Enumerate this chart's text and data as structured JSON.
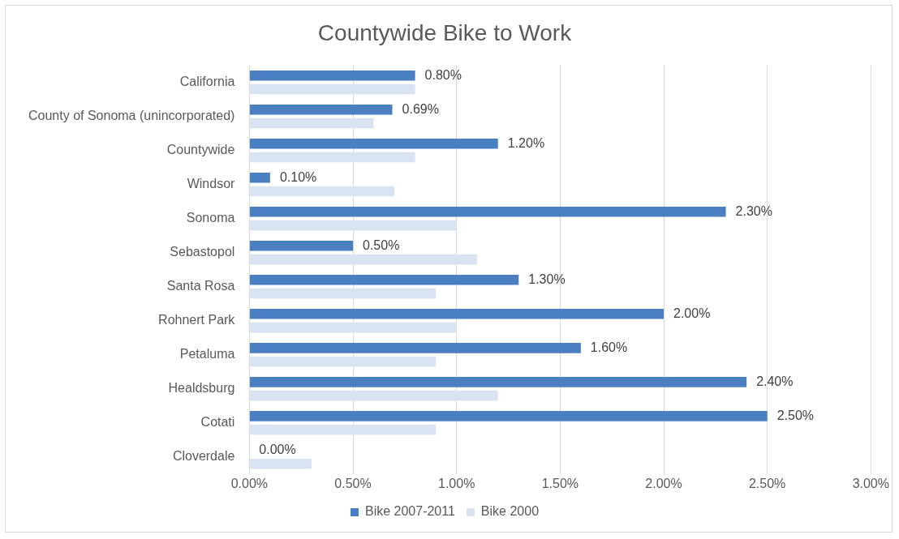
{
  "chart_data": {
    "type": "bar",
    "orientation": "horizontal",
    "title": "Countywide Bike to Work",
    "categories": [
      "California",
      "County of Sonoma (unincorporated)",
      "Countywide",
      "Windsor",
      "Sonoma",
      "Sebastopol",
      "Santa Rosa",
      "Rohnert Park",
      "Petaluma",
      "Healdsburg",
      "Cotati",
      "Cloverdale"
    ],
    "series": [
      {
        "name": "Bike 2007-2011",
        "color": "#4a7fc1",
        "values": [
          0.8,
          0.69,
          1.2,
          0.1,
          2.3,
          0.5,
          1.3,
          2.0,
          1.6,
          2.4,
          2.5,
          0.0
        ],
        "value_labels": [
          "0.80%",
          "0.69%",
          "1.20%",
          "0.10%",
          "2.30%",
          "0.50%",
          "1.30%",
          "2.00%",
          "1.60%",
          "2.40%",
          "2.50%",
          "0.00%"
        ]
      },
      {
        "name": "Bike 2000",
        "color": "#dae3f1",
        "values": [
          0.8,
          0.6,
          0.8,
          0.7,
          1.0,
          1.1,
          0.9,
          1.0,
          0.9,
          1.2,
          0.9,
          0.3
        ]
      }
    ],
    "xlim": [
      0,
      3
    ],
    "xticks": [
      {
        "value": 0,
        "label": "0.00%"
      },
      {
        "value": 0.5,
        "label": "0.50%"
      },
      {
        "value": 1,
        "label": "1.00%"
      },
      {
        "value": 1.5,
        "label": "1.50%"
      },
      {
        "value": 2,
        "label": "2.00%"
      },
      {
        "value": 2.5,
        "label": "2.50%"
      },
      {
        "value": 3,
        "label": "3.00%"
      }
    ],
    "grid": "x",
    "legend": "bottom"
  }
}
